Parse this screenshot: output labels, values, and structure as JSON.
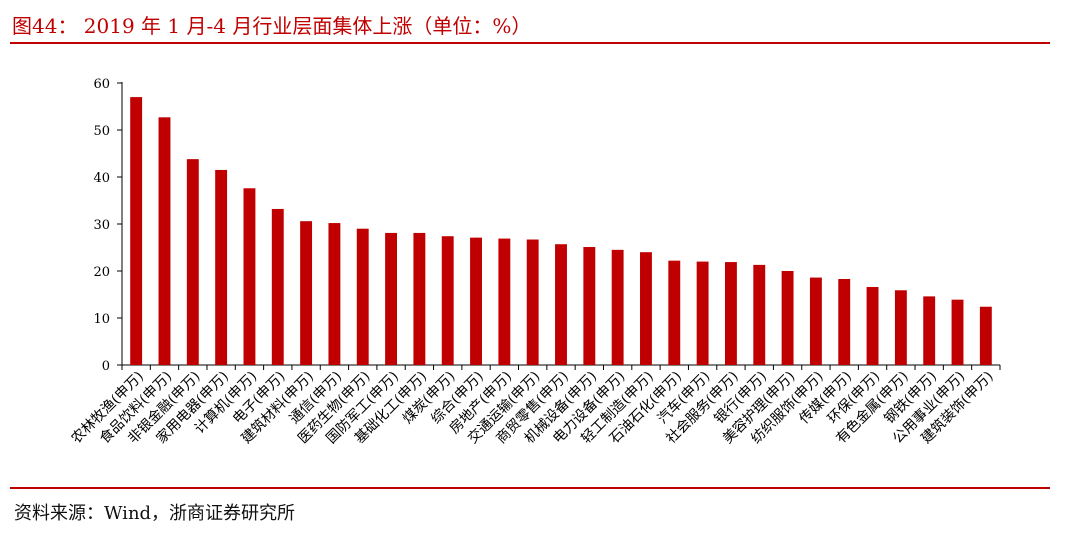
{
  "header": {
    "title": "图44： 2019 年 1 月-4 月行业层面集体上涨（单位：%）"
  },
  "footer": {
    "source": "资料来源：Wind，浙商证券研究所"
  },
  "colors": {
    "accent": "#c00000",
    "bar": "#c00000",
    "axis": "#000000"
  },
  "chart_data": {
    "type": "bar",
    "title": "2019 年 1 月-4 月行业层面集体上涨（单位：%）",
    "xlabel": "",
    "ylabel": "",
    "ylim": [
      0,
      60
    ],
    "yticks": [
      0,
      10,
      20,
      30,
      40,
      50,
      60
    ],
    "grid": false,
    "legend": "none",
    "categories": [
      "农林牧渔(申万)",
      "食品饮料(申万)",
      "非银金融(申万)",
      "家用电器(申万)",
      "计算机(申万)",
      "电子(申万)",
      "建筑材料(申万)",
      "通信(申万)",
      "医药生物(申万)",
      "国防军工(申万)",
      "基础化工(申万)",
      "煤炭(申万)",
      "综合(申万)",
      "房地产(申万)",
      "交通运输(申万)",
      "商贸零售(申万)",
      "机械设备(申万)",
      "电力设备(申万)",
      "轻工制造(申万)",
      "石油石化(申万)",
      "汽车(申万)",
      "社会服务(申万)",
      "银行(申万)",
      "美容护理(申万)",
      "纺织服饰(申万)",
      "传媒(申万)",
      "环保(申万)",
      "有色金属(申万)",
      "钢铁(申万)",
      "公用事业(申万)",
      "建筑装饰(申万)"
    ],
    "values": [
      57.0,
      52.7,
      43.8,
      41.5,
      37.6,
      33.2,
      30.6,
      30.2,
      29.0,
      28.1,
      28.1,
      27.4,
      27.1,
      26.9,
      26.7,
      25.7,
      25.1,
      24.5,
      24.0,
      22.2,
      22.0,
      21.9,
      21.3,
      20.0,
      18.6,
      18.3,
      16.6,
      15.9,
      14.6,
      13.9,
      12.4
    ]
  }
}
